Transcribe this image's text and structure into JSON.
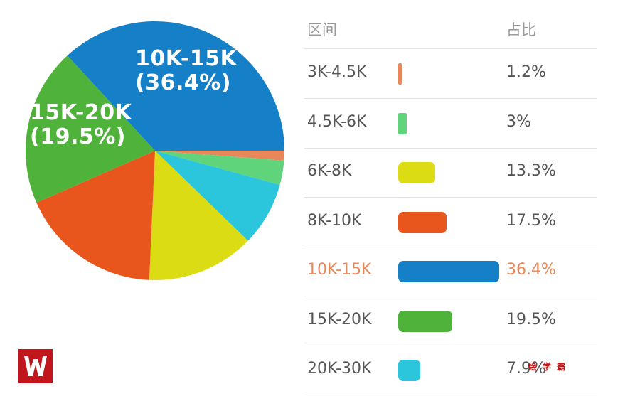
{
  "chart_data": {
    "type": "pie",
    "header": {
      "range": "区间",
      "share": "占比"
    },
    "slices": [
      {
        "range": "3K-4.5K",
        "value": 1.2,
        "pct_label": "1.2%",
        "color": "#e8875a"
      },
      {
        "range": "4.5K-6K",
        "value": 3,
        "pct_label": "3%",
        "color": "#5fd47a"
      },
      {
        "range": "6K-8K",
        "value": 13.3,
        "pct_label": "13.3%",
        "color": "#dcdc14"
      },
      {
        "range": "8K-10K",
        "value": 17.5,
        "pct_label": "17.5%",
        "color": "#e8561e"
      },
      {
        "range": "10K-15K",
        "value": 36.4,
        "pct_label": "36.4%",
        "color": "#1580c8",
        "highlight": true
      },
      {
        "range": "15K-20K",
        "value": 19.5,
        "pct_label": "19.5%",
        "color": "#4fb23a"
      },
      {
        "range": "20K-30K",
        "value": 7.9,
        "pct_label": "7.9%",
        "color": "#2cc6dc"
      }
    ],
    "pie_labels": [
      {
        "range": "10K-15K",
        "pct": "(36.4%)"
      },
      {
        "range": "15K-20K",
        "pct": "(19.5%)"
      }
    ],
    "max_value": 36.4
  },
  "watermark": "绘学霸",
  "logo_icon": "w-logo-icon"
}
